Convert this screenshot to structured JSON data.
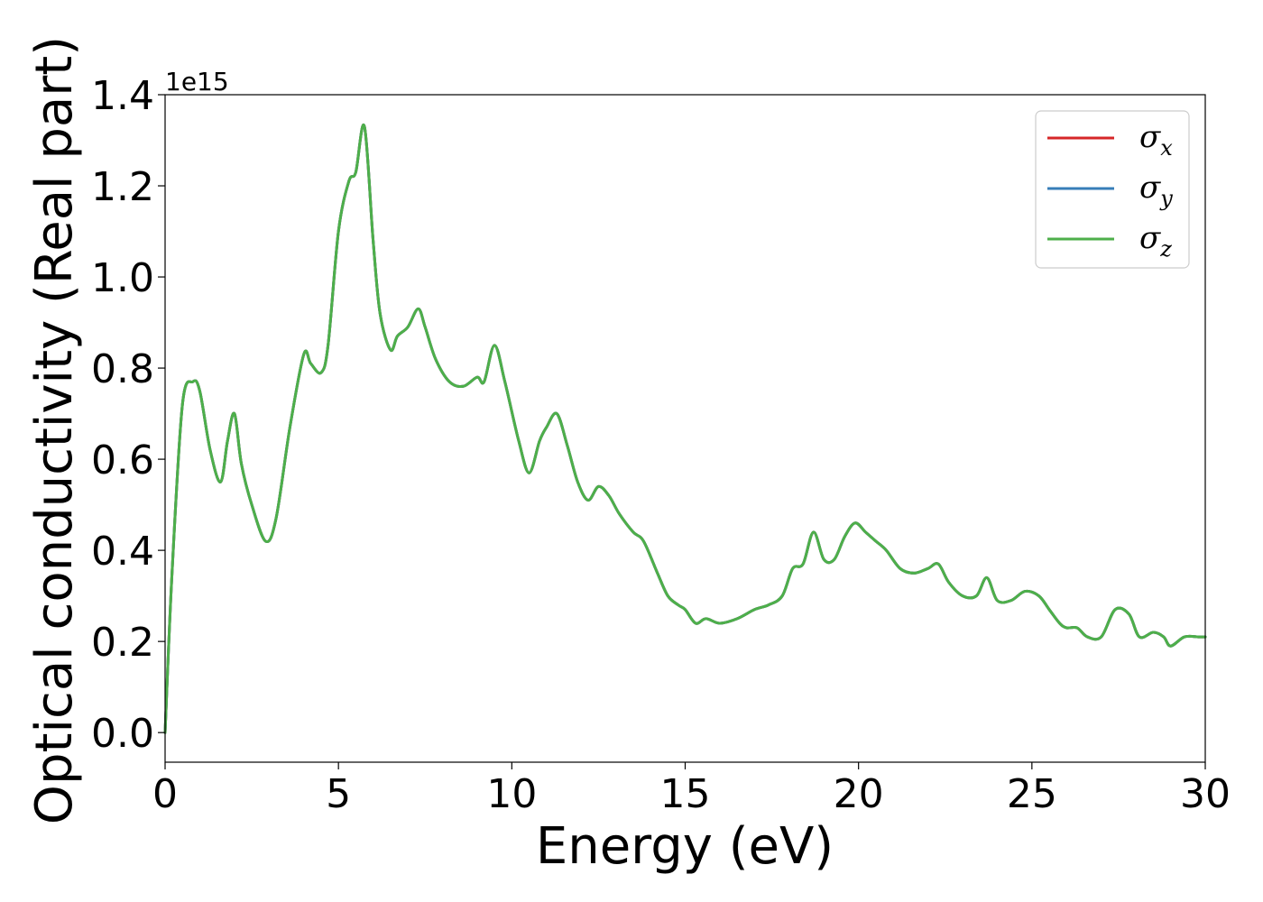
{
  "chart_data": {
    "type": "line",
    "xlabel": "Energy (eV)",
    "ylabel": "Optical conductivity (Real part)",
    "y_offset_label": "1e15",
    "xlim": [
      0,
      30
    ],
    "ylim": [
      -0.065,
      1.4
    ],
    "x_ticks": [
      0,
      5,
      10,
      15,
      20,
      25,
      30
    ],
    "x_tick_labels": [
      "0",
      "5",
      "10",
      "15",
      "20",
      "25",
      "30"
    ],
    "y_ticks": [
      0.0,
      0.2,
      0.4,
      0.6,
      0.8,
      1.0,
      1.2,
      1.4
    ],
    "y_tick_labels": [
      "0.0",
      "0.2",
      "0.4",
      "0.6",
      "0.8",
      "1.0",
      "1.2",
      "1.4"
    ],
    "grid": false,
    "legend_position": "top-right",
    "x": [
      0,
      0.2,
      0.5,
      0.8,
      1.0,
      1.3,
      1.6,
      1.8,
      2.0,
      2.2,
      2.5,
      2.9,
      3.2,
      3.6,
      4.0,
      4.2,
      4.5,
      4.7,
      5.0,
      5.3,
      5.5,
      5.75,
      6.0,
      6.2,
      6.5,
      6.7,
      7.0,
      7.3,
      7.5,
      7.8,
      8.2,
      8.6,
      9.0,
      9.2,
      9.5,
      9.8,
      10.2,
      10.5,
      10.8,
      11.0,
      11.3,
      11.6,
      11.9,
      12.2,
      12.5,
      12.8,
      13.1,
      13.5,
      13.8,
      14.2,
      14.5,
      14.8,
      15.0,
      15.3,
      15.6,
      16.0,
      16.5,
      17.0,
      17.4,
      17.8,
      18.1,
      18.4,
      18.7,
      19.0,
      19.3,
      19.6,
      19.9,
      20.2,
      20.5,
      20.8,
      21.2,
      21.6,
      22.0,
      22.3,
      22.6,
      23.0,
      23.4,
      23.7,
      24.0,
      24.4,
      24.8,
      25.2,
      25.5,
      25.8,
      26.0,
      26.3,
      26.6,
      27.0,
      27.4,
      27.8,
      28.1,
      28.5,
      28.8,
      29.0,
      29.4,
      29.8,
      30.0
    ],
    "series": [
      {
        "name": "σx",
        "color": "#d62728",
        "values": [
          0.0,
          0.35,
          0.72,
          0.77,
          0.75,
          0.62,
          0.55,
          0.64,
          0.7,
          0.59,
          0.5,
          0.42,
          0.47,
          0.67,
          0.83,
          0.81,
          0.79,
          0.85,
          1.1,
          1.21,
          1.23,
          1.33,
          1.08,
          0.92,
          0.84,
          0.87,
          0.89,
          0.93,
          0.89,
          0.82,
          0.77,
          0.76,
          0.78,
          0.77,
          0.85,
          0.77,
          0.64,
          0.57,
          0.64,
          0.67,
          0.7,
          0.63,
          0.55,
          0.51,
          0.54,
          0.52,
          0.48,
          0.44,
          0.42,
          0.35,
          0.3,
          0.28,
          0.27,
          0.24,
          0.25,
          0.24,
          0.25,
          0.27,
          0.28,
          0.3,
          0.36,
          0.37,
          0.44,
          0.38,
          0.38,
          0.43,
          0.46,
          0.44,
          0.42,
          0.4,
          0.36,
          0.35,
          0.36,
          0.37,
          0.33,
          0.3,
          0.3,
          0.34,
          0.29,
          0.29,
          0.31,
          0.3,
          0.27,
          0.24,
          0.23,
          0.23,
          0.21,
          0.21,
          0.27,
          0.26,
          0.21,
          0.22,
          0.21,
          0.19,
          0.21,
          0.21,
          0.21
        ]
      },
      {
        "name": "σy",
        "color": "#377eb8",
        "values": [
          0.0,
          0.35,
          0.72,
          0.77,
          0.75,
          0.62,
          0.55,
          0.64,
          0.7,
          0.59,
          0.5,
          0.42,
          0.47,
          0.67,
          0.83,
          0.81,
          0.79,
          0.85,
          1.1,
          1.21,
          1.23,
          1.33,
          1.08,
          0.92,
          0.84,
          0.87,
          0.89,
          0.93,
          0.89,
          0.82,
          0.77,
          0.76,
          0.78,
          0.77,
          0.85,
          0.77,
          0.64,
          0.57,
          0.64,
          0.67,
          0.7,
          0.63,
          0.55,
          0.51,
          0.54,
          0.52,
          0.48,
          0.44,
          0.42,
          0.35,
          0.3,
          0.28,
          0.27,
          0.24,
          0.25,
          0.24,
          0.25,
          0.27,
          0.28,
          0.3,
          0.36,
          0.37,
          0.44,
          0.38,
          0.38,
          0.43,
          0.46,
          0.44,
          0.42,
          0.4,
          0.36,
          0.35,
          0.36,
          0.37,
          0.33,
          0.3,
          0.3,
          0.34,
          0.29,
          0.29,
          0.31,
          0.3,
          0.27,
          0.24,
          0.23,
          0.23,
          0.21,
          0.21,
          0.27,
          0.26,
          0.21,
          0.22,
          0.21,
          0.19,
          0.21,
          0.21,
          0.21
        ]
      },
      {
        "name": "σz",
        "color": "#4daf4a",
        "values": [
          0.0,
          0.35,
          0.72,
          0.77,
          0.75,
          0.62,
          0.55,
          0.64,
          0.7,
          0.59,
          0.5,
          0.42,
          0.47,
          0.67,
          0.83,
          0.81,
          0.79,
          0.85,
          1.1,
          1.21,
          1.23,
          1.33,
          1.08,
          0.92,
          0.84,
          0.87,
          0.89,
          0.93,
          0.89,
          0.82,
          0.77,
          0.76,
          0.78,
          0.77,
          0.85,
          0.77,
          0.64,
          0.57,
          0.64,
          0.67,
          0.7,
          0.63,
          0.55,
          0.51,
          0.54,
          0.52,
          0.48,
          0.44,
          0.42,
          0.35,
          0.3,
          0.28,
          0.27,
          0.24,
          0.25,
          0.24,
          0.25,
          0.27,
          0.28,
          0.3,
          0.36,
          0.37,
          0.44,
          0.38,
          0.38,
          0.43,
          0.46,
          0.44,
          0.42,
          0.4,
          0.36,
          0.35,
          0.36,
          0.37,
          0.33,
          0.3,
          0.3,
          0.34,
          0.29,
          0.29,
          0.31,
          0.3,
          0.27,
          0.24,
          0.23,
          0.23,
          0.21,
          0.21,
          0.27,
          0.26,
          0.21,
          0.22,
          0.21,
          0.19,
          0.21,
          0.21,
          0.21
        ]
      }
    ],
    "legend": [
      {
        "symbol": "σ",
        "subscript": "x",
        "color": "#d62728"
      },
      {
        "symbol": "σ",
        "subscript": "y",
        "color": "#377eb8"
      },
      {
        "symbol": "σ",
        "subscript": "z",
        "color": "#4daf4a"
      }
    ]
  }
}
